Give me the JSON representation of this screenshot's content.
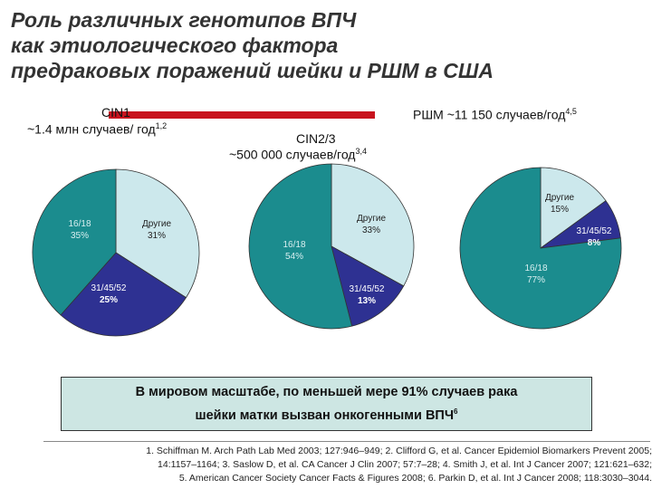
{
  "title": {
    "line1": "Роль различных генотипов ВПЧ",
    "line2": "как этиологического фактора",
    "line3": "предраковых поражений шейки и РШМ в США"
  },
  "headers": {
    "cin1_name": "CIN1",
    "cin1_cases": "~1.4 млн случаев/ год",
    "cin1_ref": "1,2",
    "cin23_name": "CIN2/3",
    "cin23_cases": "~500 000 случаев/год",
    "cin23_ref": "3,4",
    "cancer_cases": "РШМ ~11 150 случаев/год",
    "cancer_ref": "4,5"
  },
  "colors": {
    "hpv16_18": "#1b8c8e",
    "hpv31_45_52": "#2e3192",
    "other": "#cce8ec",
    "highlight_box": "#cde6e3",
    "red_bar": "#c8141e"
  },
  "chart_data": [
    {
      "type": "pie",
      "title": "CIN1",
      "slices": [
        {
          "label": "16/18",
          "value": 35,
          "value_label": "35%",
          "color": "#1b8c8e"
        },
        {
          "label": "31/45/52",
          "value": 25,
          "value_label": "25%",
          "color": "#2e3192"
        },
        {
          "label": "Другие",
          "value": 31,
          "value_label": "31%",
          "color": "#cce8ec"
        }
      ]
    },
    {
      "type": "pie",
      "title": "CIN2/3",
      "slices": [
        {
          "label": "16/18",
          "value": 54,
          "value_label": "54%",
          "color": "#1b8c8e"
        },
        {
          "label": "31/45/52",
          "value": 13,
          "value_label": "13%",
          "color": "#2e3192"
        },
        {
          "label": "Другие",
          "value": 33,
          "value_label": "33%",
          "color": "#cce8ec"
        }
      ]
    },
    {
      "type": "pie",
      "title": "РШМ",
      "slices": [
        {
          "label": "16/18",
          "value": 77,
          "value_label": "77%",
          "color": "#1b8c8e"
        },
        {
          "label": "31/45/52",
          "value": 8,
          "value_label": "8%",
          "color": "#2e3192"
        },
        {
          "label": "Другие",
          "value": 15,
          "value_label": "15%",
          "color": "#cce8ec"
        }
      ]
    }
  ],
  "highlight": {
    "line1": "В мировом масштабе, по меньшей мере 91% случаев рака",
    "line2": "шейки матки вызван онкогенными ВПЧ",
    "ref": "6"
  },
  "references": [
    "1. Schiffman M. Arch Path Lab Med 2003; 127:946–949; 2. Clifford G, et al. Cancer Epidemiol Biomarkers Prevent 2005;",
    "14:1157–1164; 3. Saslow D, et al. CA Cancer J Clin 2007; 57:7–28; 4. Smith J, et al. Int J Cancer 2007; 121:621–632;",
    "5. American Cancer Society Cancer Facts & Figures 2008; 6. Parkin D, et al. Int J Cancer 2008; 118:3030–3044."
  ]
}
